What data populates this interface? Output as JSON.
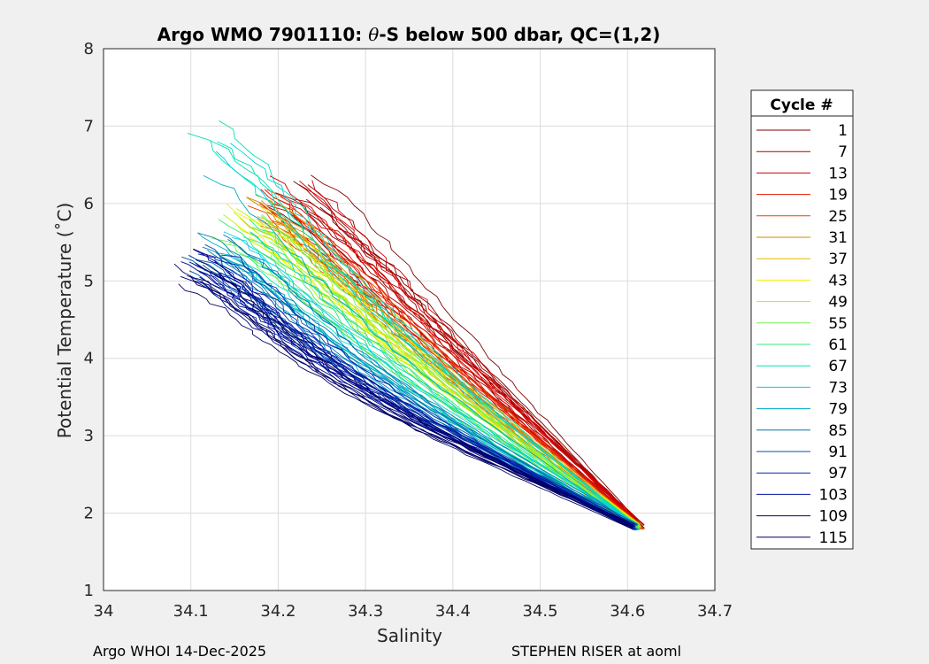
{
  "chart_data": {
    "type": "line",
    "title_prefix": "Argo WMO 7901110: ",
    "title_symbol": "θ",
    "title_suffix": "-S below 500 dbar,  QC=(1,2)",
    "xlabel": "Salinity",
    "ylabel": "Potential Temperature (˚C)",
    "xlim": [
      34,
      34.7
    ],
    "ylim": [
      1,
      8
    ],
    "xticks": [
      "34",
      "34.1",
      "34.2",
      "34.3",
      "34.4",
      "34.5",
      "34.6",
      "34.7"
    ],
    "yticks": [
      "1",
      "2",
      "3",
      "4",
      "5",
      "6",
      "7",
      "8"
    ],
    "grid": true,
    "legend": {
      "title": "Cycle #",
      "placement": "right-outside",
      "entries": [
        {
          "label": "1",
          "color": "#7f0000"
        },
        {
          "label": "7",
          "color": "#a70000"
        },
        {
          "label": "13",
          "color": "#d30000"
        },
        {
          "label": "19",
          "color": "#e21300"
        },
        {
          "label": "25",
          "color": "#ec4200"
        },
        {
          "label": "31",
          "color": "#d38a00"
        },
        {
          "label": "37",
          "color": "#e5b800"
        },
        {
          "label": "43",
          "color": "#f0f000"
        },
        {
          "label": "49",
          "color": "#b7f000"
        },
        {
          "label": "55",
          "color": "#74f050"
        },
        {
          "label": "61",
          "color": "#30e878"
        },
        {
          "label": "67",
          "color": "#00e0b0"
        },
        {
          "label": "73",
          "color": "#00d0e0"
        },
        {
          "label": "79",
          "color": "#00a8c8"
        },
        {
          "label": "85",
          "color": "#007ab0"
        },
        {
          "label": "91",
          "color": "#0050a8"
        },
        {
          "label": "97",
          "color": "#0028b0"
        },
        {
          "label": "103",
          "color": "#0010a0"
        },
        {
          "label": "109",
          "color": "#000080"
        },
        {
          "label": "115",
          "color": "#000060"
        }
      ]
    }
  },
  "footer": {
    "left": "Argo WHOI 14-Dec-2025",
    "right": "STEPHEN RISER at aoml"
  }
}
